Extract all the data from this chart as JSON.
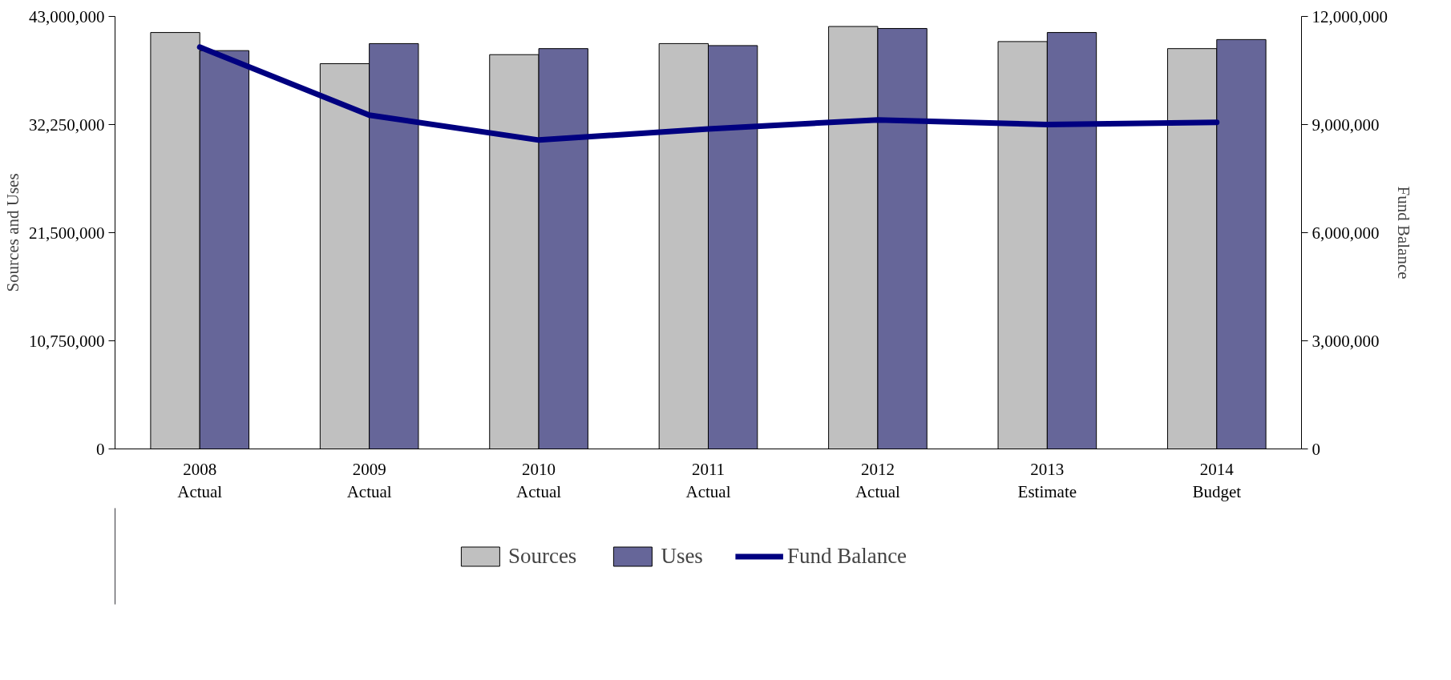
{
  "chart_data": {
    "type": "bar",
    "categories": [
      "2008\nActual",
      "2009\nActual",
      "2010\nActual",
      "2011\nActual",
      "2012\nActual",
      "2013\nEstimate",
      "2014\nBudget"
    ],
    "ylabel": "Sources and Uses",
    "y2label": "Fund Balance",
    "ylim": [
      0,
      43000000
    ],
    "yticks": [
      {
        "value": 0,
        "label": "0"
      },
      {
        "value": 10750000,
        "label": "10,750,000"
      },
      {
        "value": 21500000,
        "label": "21,500,000"
      },
      {
        "value": 32250000,
        "label": "32,250,000"
      },
      {
        "value": 43000000,
        "label": "43,000,000"
      }
    ],
    "y2lim": [
      0,
      12000000
    ],
    "y2ticks": [
      {
        "value": 0,
        "label": "0"
      },
      {
        "value": 3000000,
        "label": "3,000,000"
      },
      {
        "value": 6000000,
        "label": "6,000,000"
      },
      {
        "value": 9000000,
        "label": "9,000,000"
      },
      {
        "value": 12000000,
        "label": "12,000,000"
      }
    ],
    "series": [
      {
        "name": "Sources",
        "color": "#c0c0c0",
        "values": [
          41400000,
          38300000,
          39200000,
          40300000,
          42000000,
          40500000,
          39800000
        ]
      },
      {
        "name": "Uses",
        "color": "#666699",
        "values": [
          39600000,
          40300000,
          39800000,
          40100000,
          41800000,
          41400000,
          40700000
        ]
      },
      {
        "name": "Fund Balance",
        "type": "line",
        "axis": "y2",
        "color": "#000080",
        "values": [
          11150000,
          9260000,
          8570000,
          8880000,
          9130000,
          9000000,
          9060000
        ]
      }
    ],
    "legend": "bottom",
    "grid": false
  }
}
